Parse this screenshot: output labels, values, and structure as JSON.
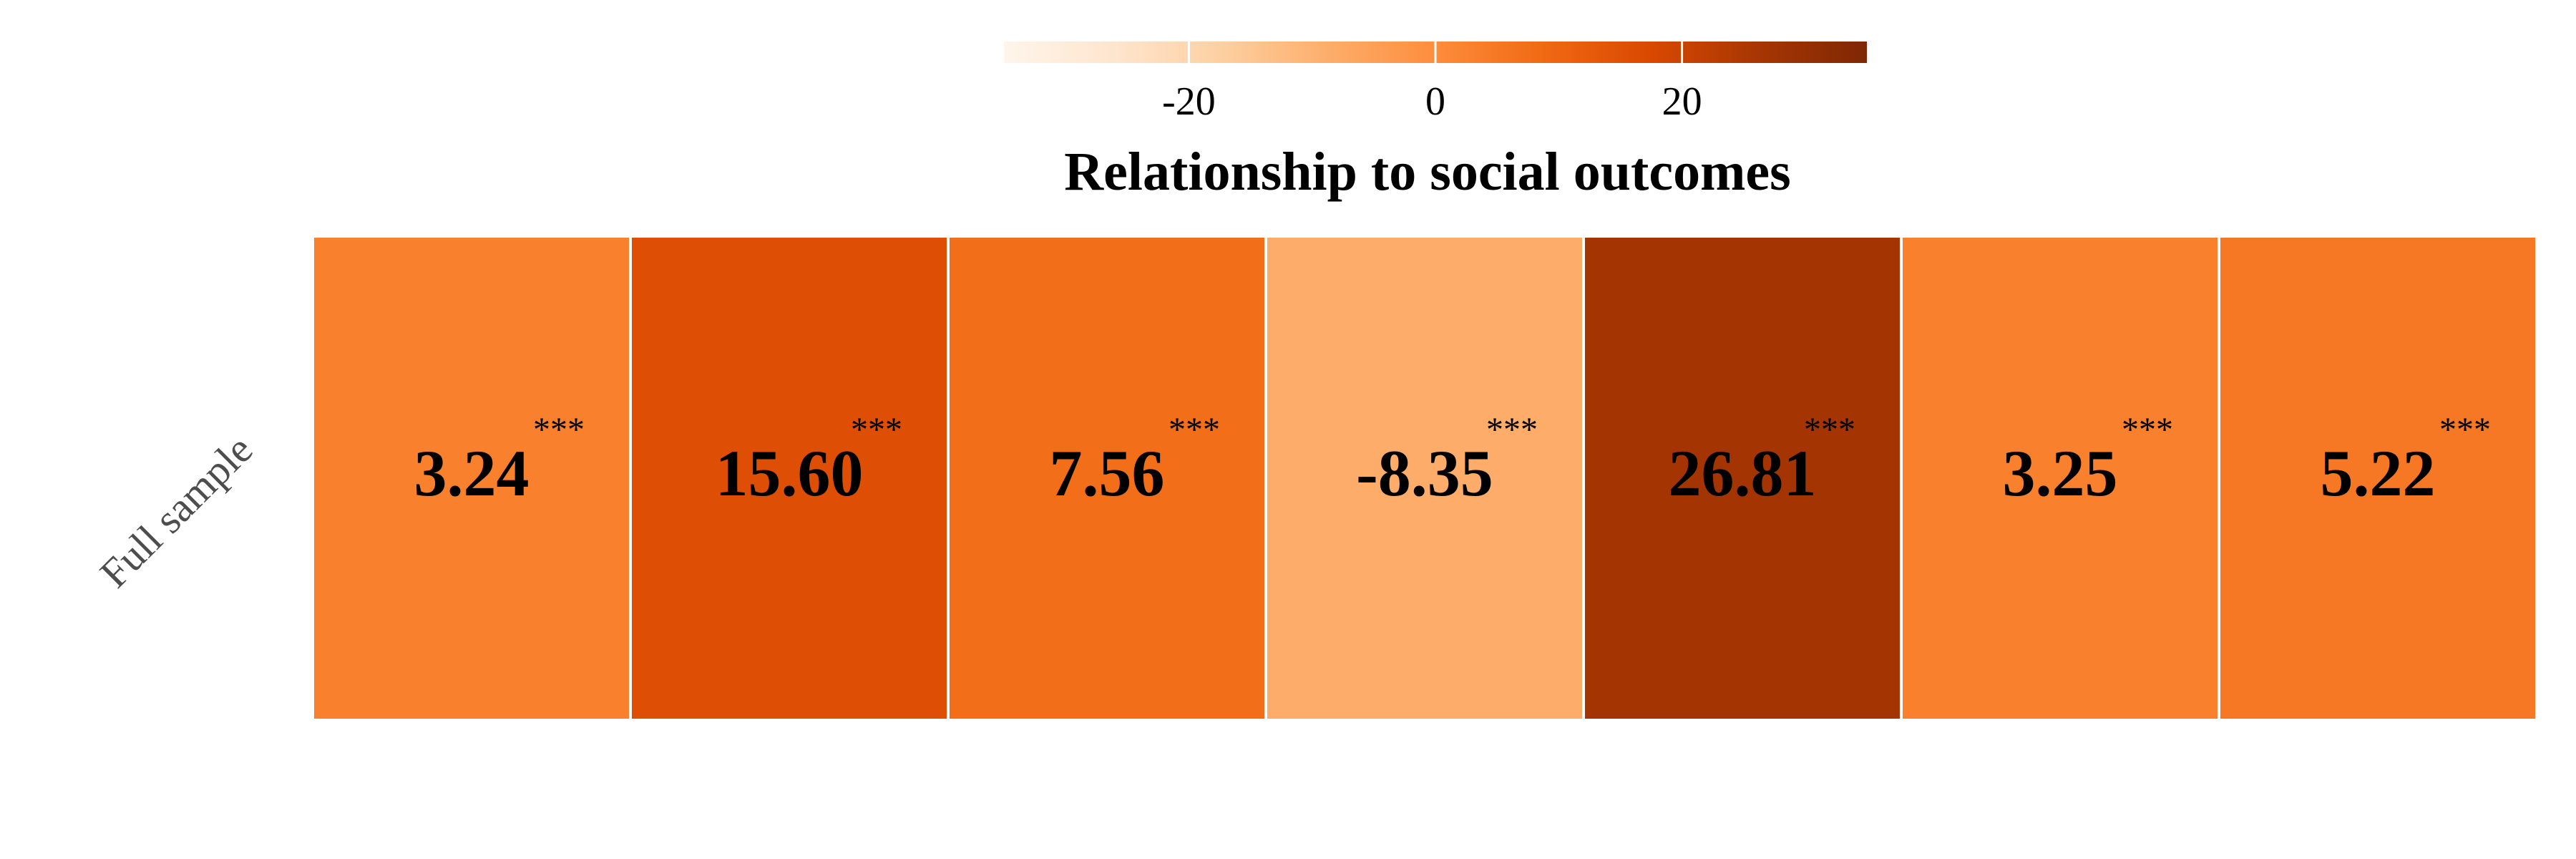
{
  "chart_data": {
    "type": "heatmap",
    "title": "Relationship to social outcomes",
    "rows": [
      "Full sample"
    ],
    "values": [
      [
        3.24,
        15.6,
        7.56,
        -8.35,
        26.81,
        3.25,
        5.22
      ]
    ],
    "labels": [
      [
        "3.24",
        "15.60",
        "7.56",
        "-8.35",
        "26.81",
        "3.25",
        "5.22"
      ]
    ],
    "significance": [
      [
        "***",
        "***",
        "***",
        "***",
        "***",
        "***",
        "***"
      ]
    ],
    "colorbar": {
      "range": [
        -35,
        35
      ],
      "ticks": [
        -20,
        0,
        20
      ],
      "tick_labels": [
        "-20",
        "0",
        "20"
      ],
      "palette": [
        "#fff5eb",
        "#fee6ce",
        "#fdd0a2",
        "#fdae6b",
        "#fd8d3c",
        "#f16913",
        "#d94801",
        "#a63603",
        "#7f2704"
      ],
      "position": "top"
    }
  }
}
